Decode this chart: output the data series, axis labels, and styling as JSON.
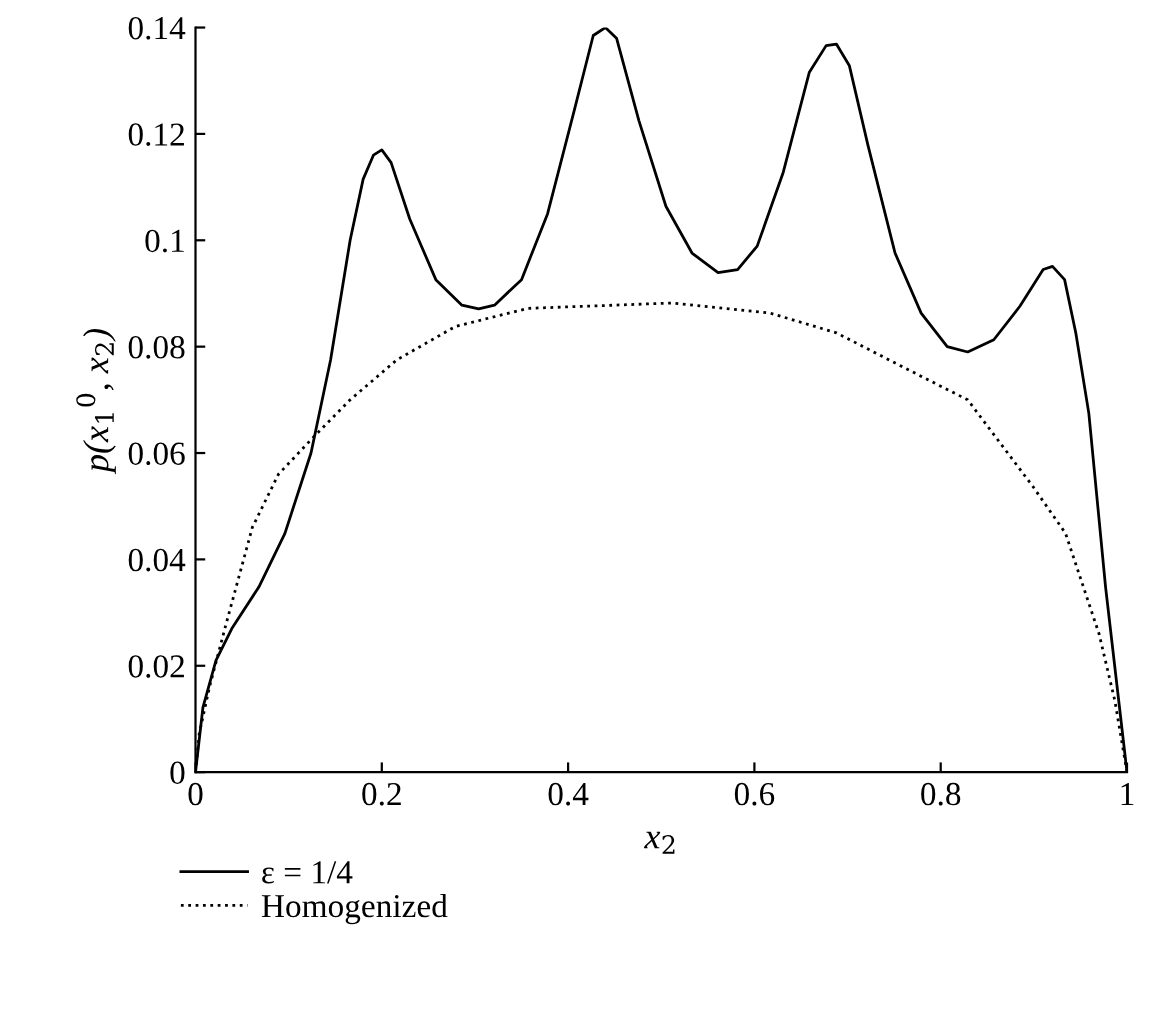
{
  "chart_data": {
    "type": "line",
    "xlabel": "x$_{2}$",
    "ylabel": "p(x$_{1}$$^{0}$, x$_{2}$)",
    "xlim": [
      0,
      1
    ],
    "ylim": [
      0,
      0.14
    ],
    "xticks": [
      0,
      0.2,
      0.4,
      0.6,
      0.8,
      1
    ],
    "yticks": [
      0,
      0.02,
      0.04,
      0.06,
      0.08,
      0.1,
      0.12,
      0.14
    ],
    "grid": false,
    "legend": "bottom left",
    "series": [
      {
        "name": "ε = 1/4",
        "color": "#000000",
        "line_style": "solid",
        "x": [
          0,
          0.008,
          0.022,
          0.039,
          0.068,
          0.096,
          0.124,
          0.145,
          0.166,
          0.18,
          0.191,
          0.2,
          0.21,
          0.23,
          0.258,
          0.286,
          0.304,
          0.321,
          0.35,
          0.378,
          0.406,
          0.427,
          0.44,
          0.452,
          0.476,
          0.505,
          0.533,
          0.561,
          0.582,
          0.603,
          0.631,
          0.659,
          0.677,
          0.688,
          0.702,
          0.722,
          0.751,
          0.779,
          0.807,
          0.829,
          0.857,
          0.885,
          0.91,
          0.92,
          0.933,
          0.945,
          0.959,
          0.977,
          1
        ],
        "values": [
          0,
          0.0122,
          0.021,
          0.027,
          0.0348,
          0.0449,
          0.06,
          0.0775,
          0.1,
          0.1115,
          0.116,
          0.117,
          0.1146,
          0.104,
          0.0926,
          0.0878,
          0.0871,
          0.0878,
          0.0926,
          0.105,
          0.124,
          0.1385,
          0.14,
          0.138,
          0.1225,
          0.1064,
          0.0976,
          0.0939,
          0.0945,
          0.0989,
          0.1128,
          0.1316,
          0.1366,
          0.1369,
          0.1328,
          0.1178,
          0.0976,
          0.0863,
          0.08,
          0.079,
          0.0813,
          0.0876,
          0.0945,
          0.0951,
          0.0926,
          0.0826,
          0.0675,
          0.0348,
          0
        ]
      },
      {
        "name": "Homogenized",
        "color": "#000000",
        "line_style": "dotted",
        "x": [
          0,
          0.004,
          0.015,
          0.032,
          0.061,
          0.089,
          0.124,
          0.166,
          0.216,
          0.279,
          0.357,
          0.511,
          0.617,
          0.688,
          0.758,
          0.829,
          0.899,
          0.934,
          0.97,
          0.987,
          1
        ],
        "values": [
          0,
          0.0072,
          0.016,
          0.0273,
          0.046,
          0.056,
          0.0625,
          0.07,
          0.0775,
          0.0838,
          0.0872,
          0.0882,
          0.0863,
          0.0826,
          0.0763,
          0.07,
          0.0537,
          0.0449,
          0.026,
          0.0134,
          0
        ]
      }
    ]
  }
}
